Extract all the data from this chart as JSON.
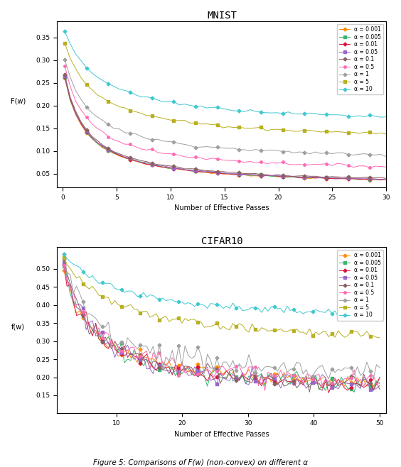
{
  "title_top": "MNIST",
  "title_bottom": "CIFAR10",
  "xlabel": "Number of Effective Passes",
  "ylabel_top": "F(w)",
  "ylabel_bottom": "f(w)",
  "caption": "Figure 5: Comparisons of F(w) (non-convex) on different α",
  "alphas": [
    0.001,
    0.005,
    0.01,
    0.05,
    0.1,
    0.5,
    1,
    5,
    10
  ],
  "alpha_labels": [
    "α = 0.001",
    "α = 0.005",
    "α = 0.01",
    "α = 0.05",
    "α = 0.1",
    "α = 0.5",
    "α = 1",
    "α = 5",
    "α = 10"
  ],
  "colors": [
    "#FF8C00",
    "#3CB371",
    "#DC143C",
    "#9966CC",
    "#8B6060",
    "#FF69B4",
    "#A0A0A0",
    "#B8B020",
    "#40C8D0"
  ],
  "markers": [
    "D",
    "s",
    "D",
    "s",
    "D",
    "o",
    "D",
    "s",
    "D"
  ],
  "mnist_ylim": [
    0.02,
    0.385
  ],
  "mnist_yticks": [
    0.05,
    0.1,
    0.15,
    0.2,
    0.25,
    0.3,
    0.35
  ],
  "mnist_xlim": [
    -0.5,
    30
  ],
  "cifar_ylim": [
    0.1,
    0.56
  ],
  "cifar_yticks": [
    0.15,
    0.2,
    0.25,
    0.3,
    0.35,
    0.4,
    0.45,
    0.5
  ],
  "cifar_xlim": [
    1,
    51
  ],
  "n_points_mnist": 60,
  "n_points_cifar": 100
}
